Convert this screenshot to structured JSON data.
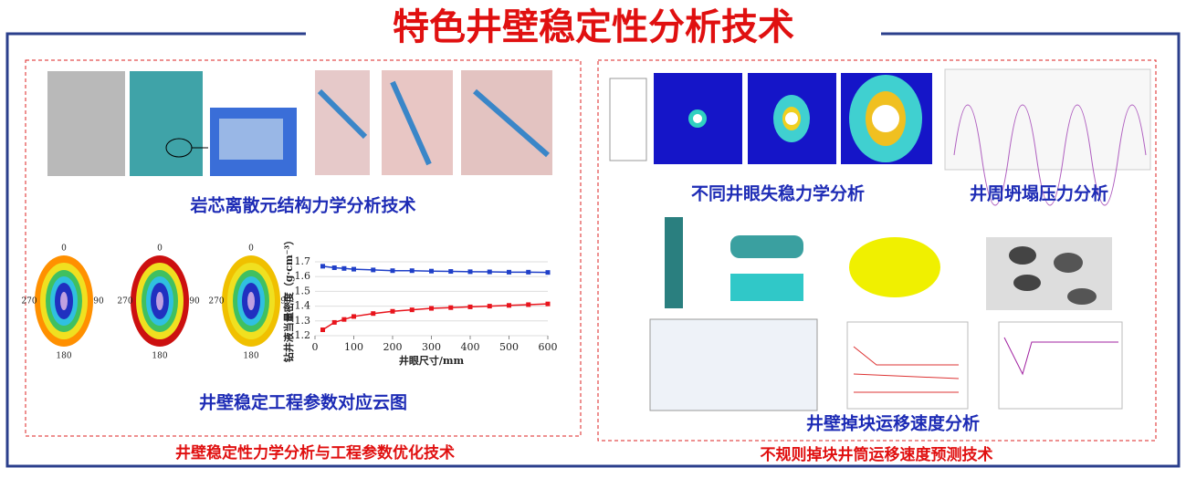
{
  "title": "特色井壁稳定性分析技术",
  "left_panel": {
    "caption_top": "岩芯离散元结构力学分析技术",
    "caption_bottom": "井壁稳定工程参数对应云图",
    "footer": "井壁稳定性力学分析与工程参数优化技术"
  },
  "right_panel": {
    "caption_contour": "不同井眼失稳力学分析",
    "caption_pressure": "井周坍塌压力分析",
    "caption_velocity": "井壁掉块运移速度分析",
    "footer": "不规则掉块井筒运移速度预测技术"
  },
  "polar_labels": [
    0,
    90,
    180,
    270
  ],
  "chart_data": {
    "type": "line",
    "x_label": "井眼尺寸/mm",
    "y_label": "钻井液当量密度（g·cm⁻³）",
    "x": [
      20,
      50,
      75,
      100,
      150,
      200,
      250,
      300,
      350,
      400,
      450,
      500,
      550,
      600
    ],
    "series": [
      {
        "color": "#1f3fc8",
        "values": [
          1.67,
          1.66,
          1.655,
          1.65,
          1.645,
          1.64,
          1.64,
          1.637,
          1.635,
          1.633,
          1.632,
          1.63,
          1.63,
          1.628
        ]
      },
      {
        "color": "#e8141c",
        "values": [
          1.24,
          1.29,
          1.31,
          1.33,
          1.35,
          1.365,
          1.375,
          1.385,
          1.39,
          1.395,
          1.4,
          1.405,
          1.41,
          1.415
        ]
      }
    ],
    "xlim": [
      0,
      600
    ],
    "ylim": [
      1.2,
      1.7
    ],
    "xticks": [
      0,
      100,
      200,
      300,
      400,
      500,
      600
    ],
    "yticks": [
      1.2,
      1.3,
      1.4,
      1.5,
      1.6,
      1.7
    ]
  }
}
